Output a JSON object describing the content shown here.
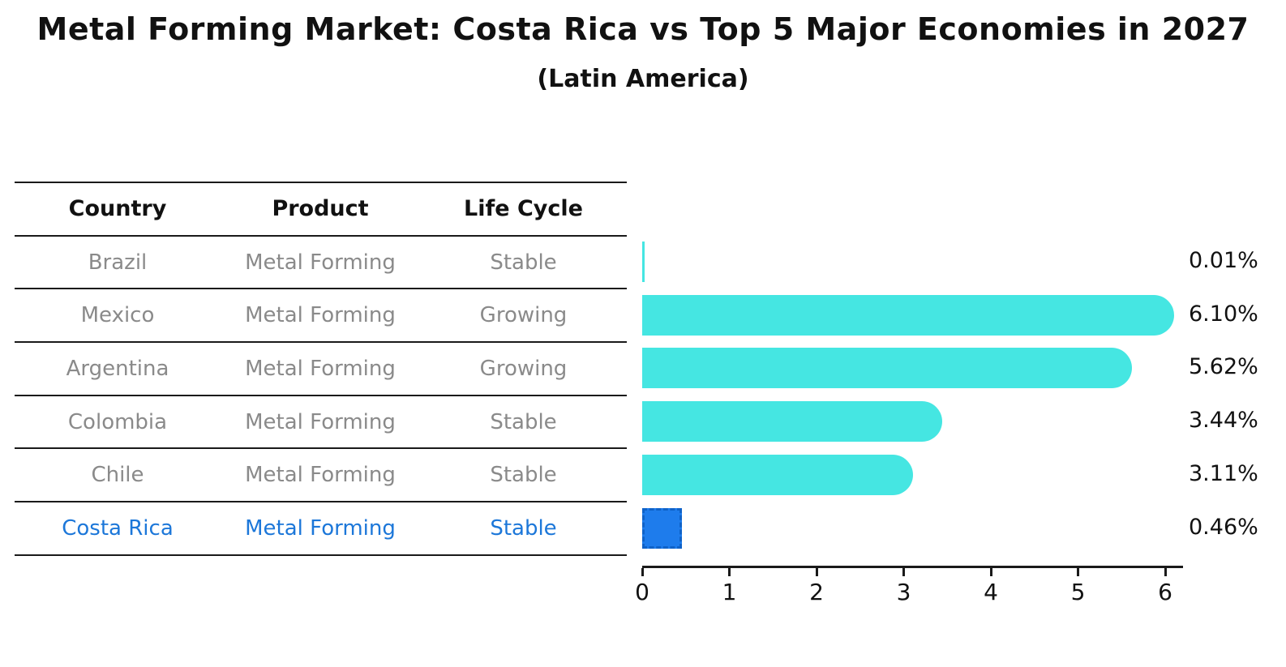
{
  "title": "Metal Forming Market: Costa Rica vs Top 5 Major Economies in 2027",
  "subtitle": "(Latin America)",
  "table": {
    "columns": [
      "Country",
      "Product",
      "Life Cycle"
    ],
    "rows": [
      {
        "country": "Brazil",
        "product": "Metal Forming",
        "life_cycle": "Stable",
        "highlight": false
      },
      {
        "country": "Mexico",
        "product": "Metal Forming",
        "life_cycle": "Growing",
        "highlight": false
      },
      {
        "country": "Argentina",
        "product": "Metal Forming",
        "life_cycle": "Growing",
        "highlight": false
      },
      {
        "country": "Colombia",
        "product": "Metal Forming",
        "life_cycle": "Stable",
        "highlight": false
      },
      {
        "country": "Chile",
        "product": "Metal Forming",
        "life_cycle": "Stable",
        "highlight": false
      },
      {
        "country": "Costa Rica",
        "product": "Metal Forming",
        "life_cycle": "Stable",
        "highlight": true
      }
    ]
  },
  "chart_data": {
    "type": "bar",
    "orientation": "horizontal",
    "title": "Metal Forming Market: Costa Rica vs Top 5 Major Economies in 2027",
    "subtitle": "(Latin America)",
    "categories": [
      "Brazil",
      "Mexico",
      "Argentina",
      "Colombia",
      "Chile",
      "Costa Rica"
    ],
    "values": [
      0.01,
      6.1,
      5.62,
      3.44,
      3.11,
      0.46
    ],
    "value_labels": [
      "0.01%",
      "6.10%",
      "5.62%",
      "3.44%",
      "3.11%",
      "0.46%"
    ],
    "xlim": [
      0,
      6.5
    ],
    "x_ticks": [
      0,
      1,
      2,
      3,
      4,
      5,
      6
    ],
    "x_tick_labels": [
      "0",
      "1",
      "2",
      "3",
      "4",
      "5",
      "6"
    ],
    "grid": false,
    "legend": false,
    "highlight_index": 5,
    "bar_color": "#45e6e2",
    "highlight_bar_color": "#1e7cec",
    "highlight_border_color": "#0f62c8",
    "highlight_text_color": "#1c77d9",
    "axis_color": "#1a1a1a",
    "label_color": "#111111",
    "row_text_color": "#8a8a8a"
  }
}
